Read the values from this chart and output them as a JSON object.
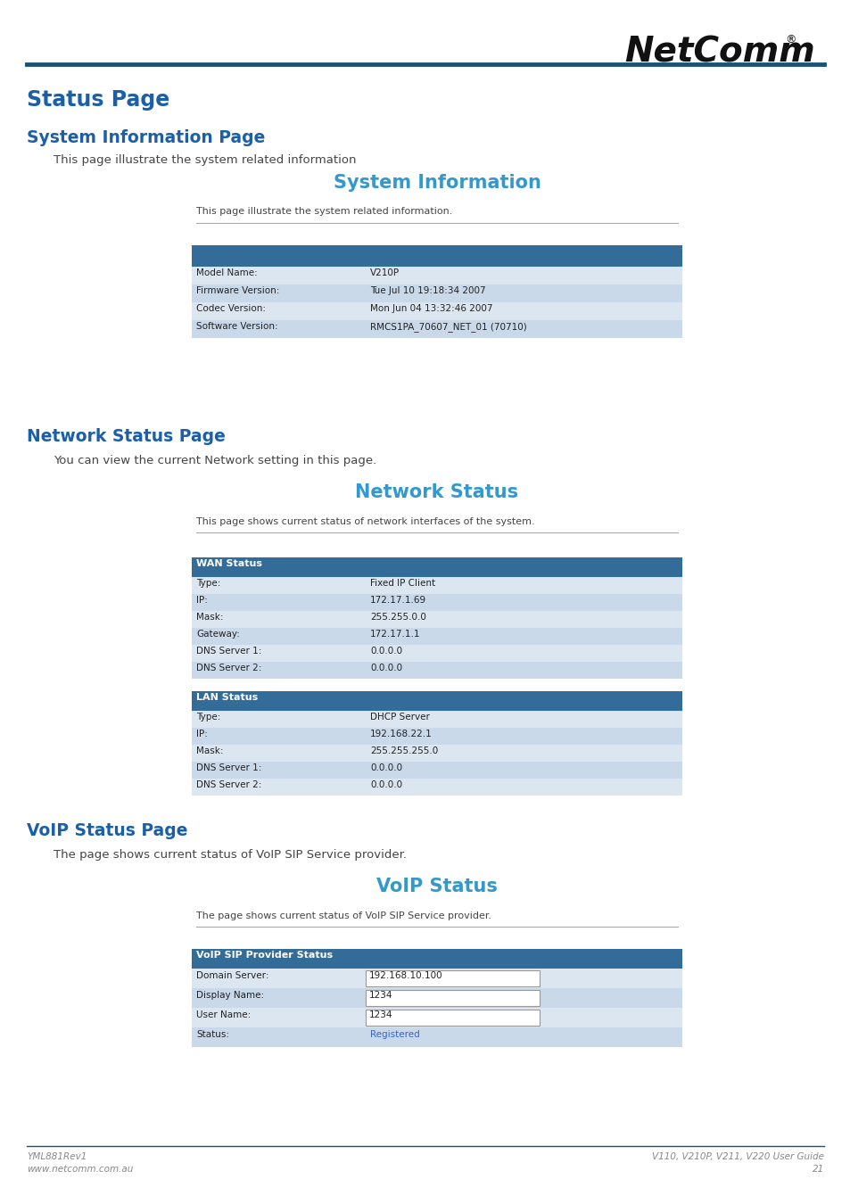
{
  "page_bg": "#ffffff",
  "header_line_color": "#1a5276",
  "logo_text": "NetComm",
  "logo_sup": "®",
  "section1_heading": "Status Page",
  "section2_heading": "System Information Page",
  "section2_desc": "This page illustrate the system related information",
  "sysinfo_title": "System Information",
  "sysinfo_subtitle": "This page illustrate the system related information.",
  "sysinfo_header_color": "#336b99",
  "sysinfo_row_colors": [
    "#dce6f1",
    "#c9d9ea"
  ],
  "sysinfo_rows": [
    [
      "Model Name:",
      "V210P"
    ],
    [
      "Firmware Version:",
      "Tue Jul 10 19:18:34 2007"
    ],
    [
      "Codec Version:",
      "Mon Jun 04 13:32:46 2007"
    ],
    [
      "Software Version:",
      "RMCS1PA_70607_NET_01 (70710)"
    ]
  ],
  "section3_heading": "Network Status Page",
  "section3_desc": "You can view the current Network setting in this page.",
  "netstat_title": "Network Status",
  "netstat_subtitle": "This page shows current status of network interfaces of the system.",
  "netstat_header_color": "#336b99",
  "netstat_row_colors": [
    "#dce6f1",
    "#c9d9ea"
  ],
  "wan_header": "WAN Status",
  "wan_rows": [
    [
      "Type:",
      "Fixed IP Client"
    ],
    [
      "IP:",
      "172.17.1.69"
    ],
    [
      "Mask:",
      "255.255.0.0"
    ],
    [
      "Gateway:",
      "172.17.1.1"
    ],
    [
      "DNS Server 1:",
      "0.0.0.0"
    ],
    [
      "DNS Server 2:",
      "0.0.0.0"
    ]
  ],
  "lan_header": "LAN Status",
  "lan_rows": [
    [
      "Type:",
      "DHCP Server"
    ],
    [
      "IP:",
      "192.168.22.1"
    ],
    [
      "Mask:",
      "255.255.255.0"
    ],
    [
      "DNS Server 1:",
      "0.0.0.0"
    ],
    [
      "DNS Server 2:",
      "0.0.0.0"
    ]
  ],
  "section4_heading": "VoIP Status Page",
  "section4_desc": "The page shows current status of VoIP SIP Service provider.",
  "voip_title": "VoIP Status",
  "voip_subtitle": "The page shows current status of VoIP SIP Service provider.",
  "voip_header_color": "#336b99",
  "voip_header": "VoIP SIP Provider Status",
  "voip_rows": [
    [
      "Domain Server:",
      "192.168.10.100",
      false
    ],
    [
      "Display Name:",
      "1234",
      false
    ],
    [
      "User Name:",
      "1234",
      false
    ],
    [
      "Status:",
      "Registered",
      true
    ]
  ],
  "voip_status_color": "#3366cc",
  "voip_input_border": "#999999",
  "voip_input_bg": "#ffffff",
  "voip_row_colors": [
    "#dce6f1",
    "#c9d9ea"
  ],
  "footer_line_color": "#1a5276",
  "footer_left1": "YML881Rev1",
  "footer_left2": "www.netcomm.com.au",
  "footer_right1": "V110, V210P, V211, V220 User Guide",
  "footer_right2": "21",
  "heading_color": "#1a5fa8",
  "section_title_color": "#3399cc"
}
